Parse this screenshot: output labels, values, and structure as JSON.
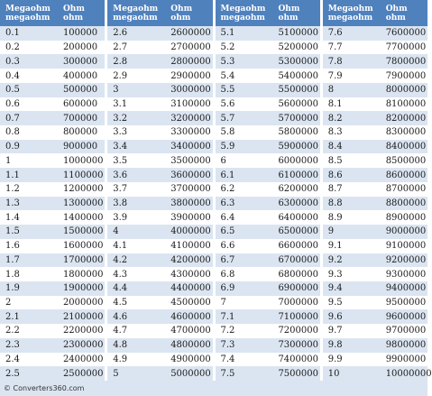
{
  "headers": {
    "col1_line1": "Megaohm",
    "col1_line2": "megaohm",
    "col2_line1": "Ohm",
    "col2_line2": "ohm"
  },
  "blocks": [
    {
      "rows": [
        [
          "0.1",
          "100000"
        ],
        [
          "0.2",
          "200000"
        ],
        [
          "0.3",
          "300000"
        ],
        [
          "0.4",
          "400000"
        ],
        [
          "0.5",
          "500000"
        ],
        [
          "0.6",
          "600000"
        ],
        [
          "0.7",
          "700000"
        ],
        [
          "0.8",
          "800000"
        ],
        [
          "0.9",
          "900000"
        ],
        [
          "1",
          "1000000"
        ],
        [
          "1.1",
          "1100000"
        ],
        [
          "1.2",
          "1200000"
        ],
        [
          "1.3",
          "1300000"
        ],
        [
          "1.4",
          "1400000"
        ],
        [
          "1.5",
          "1500000"
        ],
        [
          "1.6",
          "1600000"
        ],
        [
          "1.7",
          "1700000"
        ],
        [
          "1.8",
          "1800000"
        ],
        [
          "1.9",
          "1900000"
        ],
        [
          "2",
          "2000000"
        ],
        [
          "2.1",
          "2100000"
        ],
        [
          "2.2",
          "2200000"
        ],
        [
          "2.3",
          "2300000"
        ],
        [
          "2.4",
          "2400000"
        ],
        [
          "2.5",
          "2500000"
        ]
      ]
    },
    {
      "rows": [
        [
          "2.6",
          "2600000"
        ],
        [
          "2.7",
          "2700000"
        ],
        [
          "2.8",
          "2800000"
        ],
        [
          "2.9",
          "2900000"
        ],
        [
          "3",
          "3000000"
        ],
        [
          "3.1",
          "3100000"
        ],
        [
          "3.2",
          "3200000"
        ],
        [
          "3.3",
          "3300000"
        ],
        [
          "3.4",
          "3400000"
        ],
        [
          "3.5",
          "3500000"
        ],
        [
          "3.6",
          "3600000"
        ],
        [
          "3.7",
          "3700000"
        ],
        [
          "3.8",
          "3800000"
        ],
        [
          "3.9",
          "3900000"
        ],
        [
          "4",
          "4000000"
        ],
        [
          "4.1",
          "4100000"
        ],
        [
          "4.2",
          "4200000"
        ],
        [
          "4.3",
          "4300000"
        ],
        [
          "4.4",
          "4400000"
        ],
        [
          "4.5",
          "4500000"
        ],
        [
          "4.6",
          "4600000"
        ],
        [
          "4.7",
          "4700000"
        ],
        [
          "4.8",
          "4800000"
        ],
        [
          "4.9",
          "4900000"
        ],
        [
          "5",
          "5000000"
        ]
      ]
    },
    {
      "rows": [
        [
          "5.1",
          "5100000"
        ],
        [
          "5.2",
          "5200000"
        ],
        [
          "5.3",
          "5300000"
        ],
        [
          "5.4",
          "5400000"
        ],
        [
          "5.5",
          "5500000"
        ],
        [
          "5.6",
          "5600000"
        ],
        [
          "5.7",
          "5700000"
        ],
        [
          "5.8",
          "5800000"
        ],
        [
          "5.9",
          "5900000"
        ],
        [
          "6",
          "6000000"
        ],
        [
          "6.1",
          "6100000"
        ],
        [
          "6.2",
          "6200000"
        ],
        [
          "6.3",
          "6300000"
        ],
        [
          "6.4",
          "6400000"
        ],
        [
          "6.5",
          "6500000"
        ],
        [
          "6.6",
          "6600000"
        ],
        [
          "6.7",
          "6700000"
        ],
        [
          "6.8",
          "6800000"
        ],
        [
          "6.9",
          "6900000"
        ],
        [
          "7",
          "7000000"
        ],
        [
          "7.1",
          "7100000"
        ],
        [
          "7.2",
          "7200000"
        ],
        [
          "7.3",
          "7300000"
        ],
        [
          "7.4",
          "7400000"
        ],
        [
          "7.5",
          "7500000"
        ]
      ]
    },
    {
      "rows": [
        [
          "7.6",
          "7600000"
        ],
        [
          "7.7",
          "7700000"
        ],
        [
          "7.8",
          "7800000"
        ],
        [
          "7.9",
          "7900000"
        ],
        [
          "8",
          "8000000"
        ],
        [
          "8.1",
          "8100000"
        ],
        [
          "8.2",
          "8200000"
        ],
        [
          "8.3",
          "8300000"
        ],
        [
          "8.4",
          "8400000"
        ],
        [
          "8.5",
          "8500000"
        ],
        [
          "8.6",
          "8600000"
        ],
        [
          "8.7",
          "8700000"
        ],
        [
          "8.8",
          "8800000"
        ],
        [
          "8.9",
          "8900000"
        ],
        [
          "9",
          "9000000"
        ],
        [
          "9.1",
          "9100000"
        ],
        [
          "9.2",
          "9200000"
        ],
        [
          "9.3",
          "9300000"
        ],
        [
          "9.4",
          "9400000"
        ],
        [
          "9.5",
          "9500000"
        ],
        [
          "9.6",
          "9600000"
        ],
        [
          "9.7",
          "9700000"
        ],
        [
          "9.8",
          "9800000"
        ],
        [
          "9.9",
          "9900000"
        ],
        [
          "10",
          "10000000"
        ]
      ]
    }
  ],
  "footer": {
    "text": "© Converters360.com"
  },
  "colors": {
    "header_bg": "#4f81bd",
    "stripe_bg": "#dbe5f1"
  }
}
